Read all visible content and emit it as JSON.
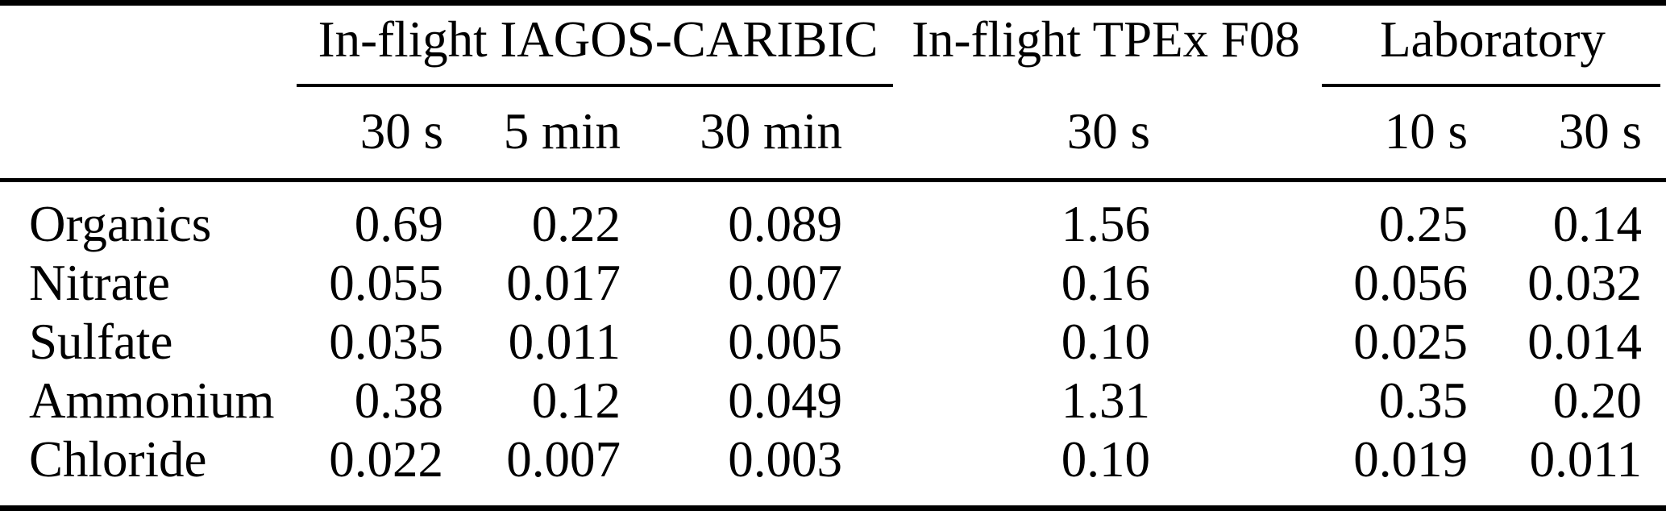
{
  "page": {
    "background_color": "#ffffff",
    "text_color": "#000000"
  },
  "table": {
    "column_groups": [
      {
        "label": "In-flight IAGOS-CARIBIC",
        "columns": [
          "30 s",
          "5 min",
          "30 min"
        ]
      },
      {
        "label": "In-flight TPEx F08",
        "columns": [
          "30 s"
        ]
      },
      {
        "label": "Laboratory",
        "columns": [
          "10 s",
          "30 s"
        ]
      }
    ],
    "sub_headers": [
      "30 s",
      "5 min",
      "30 min",
      "30 s",
      "10 s",
      "30 s"
    ],
    "rows": [
      {
        "label": "Organics",
        "values": [
          "0.69",
          "0.22",
          "0.089",
          "1.56",
          "0.25",
          "0.14"
        ]
      },
      {
        "label": "Nitrate",
        "values": [
          "0.055",
          "0.017",
          "0.007",
          "0.16",
          "0.056",
          "0.032"
        ]
      },
      {
        "label": "Sulfate",
        "values": [
          "0.035",
          "0.011",
          "0.005",
          "0.10",
          "0.025",
          "0.014"
        ]
      },
      {
        "label": "Ammonium",
        "values": [
          "0.38",
          "0.12",
          "0.049",
          "1.31",
          "0.35",
          "0.20"
        ]
      },
      {
        "label": "Chloride",
        "values": [
          "0.022",
          "0.007",
          "0.003",
          "0.10",
          "0.019",
          "0.011"
        ]
      }
    ]
  }
}
